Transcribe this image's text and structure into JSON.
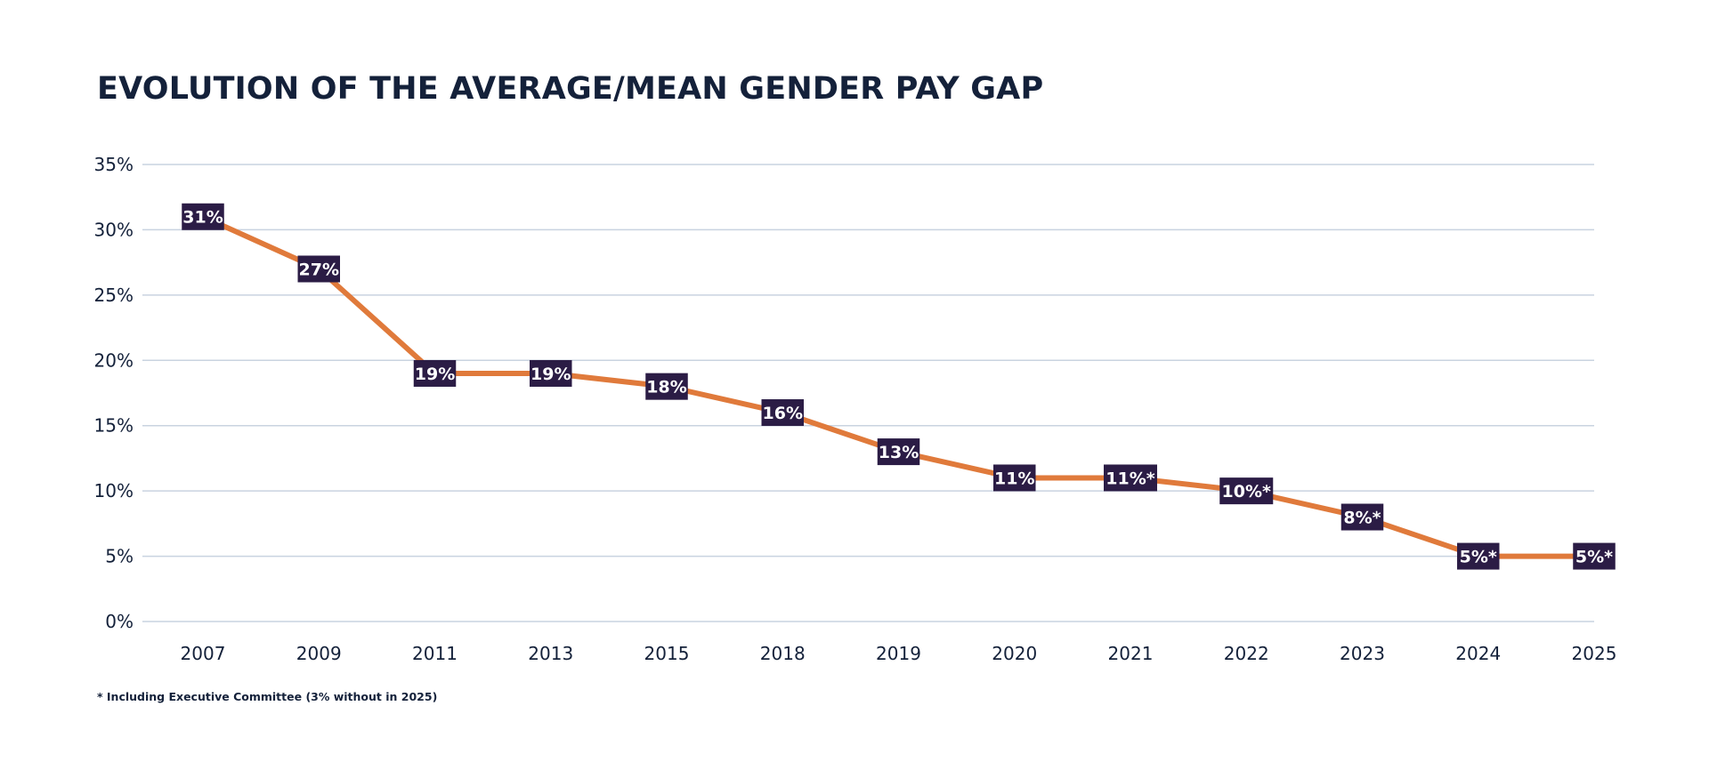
{
  "chart_data": {
    "type": "line",
    "title": "EVOLUTION OF THE AVERAGE/MEAN GENDER PAY GAP",
    "categories": [
      "2007",
      "2009",
      "2011",
      "2013",
      "2015",
      "2018",
      "2019",
      "2020",
      "2021",
      "2022",
      "2023",
      "2024",
      "2025"
    ],
    "values": [
      31,
      27,
      19,
      19,
      18,
      16,
      13,
      11,
      11,
      10,
      8,
      5,
      5
    ],
    "data_labels": [
      "31%",
      "27%",
      "19%",
      "19%",
      "18%",
      "16%",
      "13%",
      "11%",
      "11%*",
      "10%*",
      "8%*",
      "5%*",
      "5%*"
    ],
    "yticks": [
      "0%",
      "5%",
      "10%",
      "15%",
      "20%",
      "25%",
      "30%",
      "35%"
    ],
    "ylim": [
      0,
      35
    ],
    "xlabel": "",
    "ylabel": "",
    "grid": true,
    "footnote": "* Including Executive Committee (3% without in 2025)",
    "colors": {
      "line": "#e07a3b",
      "label_bg": "#2b1c45",
      "grid": "#c9d3e0",
      "text": "#14213a"
    }
  }
}
